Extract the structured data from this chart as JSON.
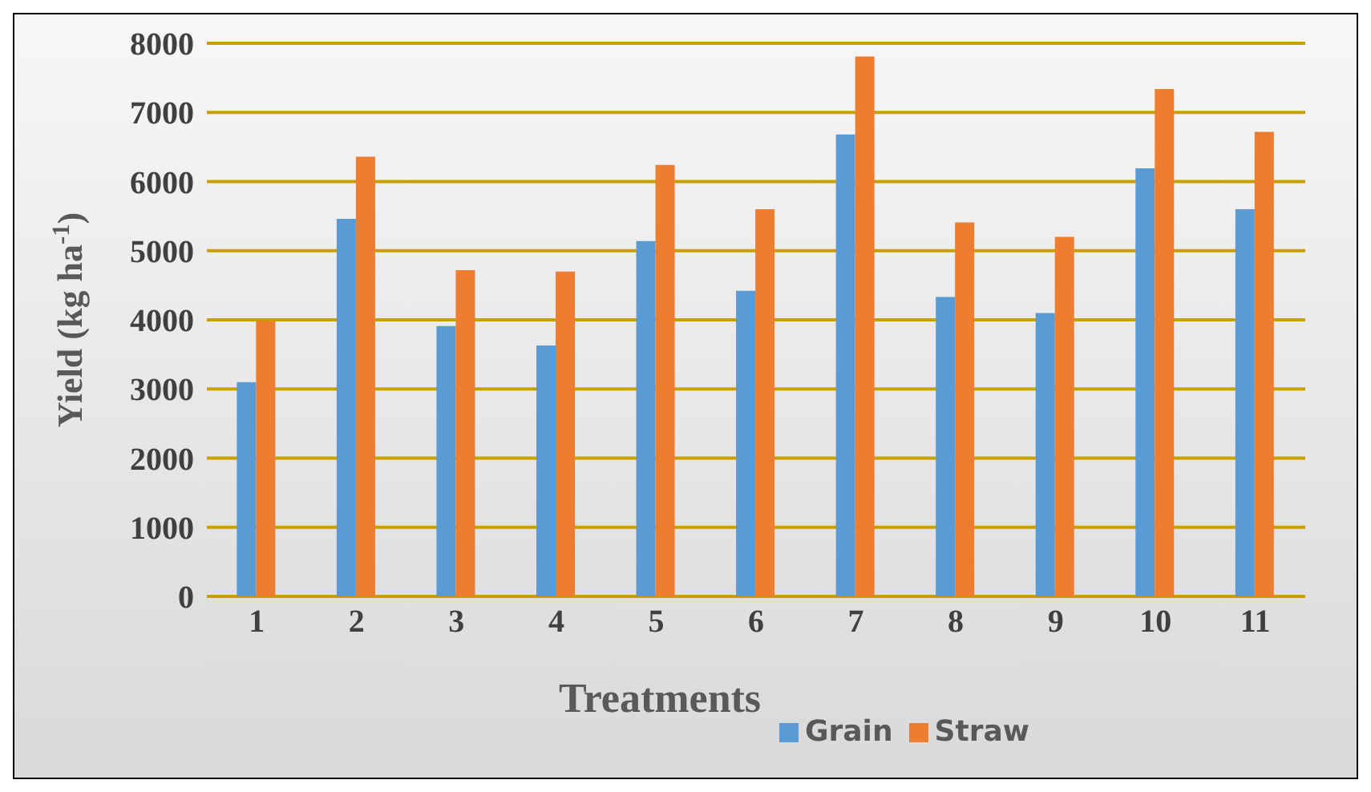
{
  "chart_data": {
    "type": "bar",
    "xlabel": "Treatments",
    "ylabel": "Yield  (kg ha$^{-1}$)",
    "categories": [
      "1",
      "2",
      "3",
      "4",
      "5",
      "6",
      "7",
      "8",
      "9",
      "10",
      "11"
    ],
    "series": [
      {
        "name": "Grain",
        "color": "#5b9bd5",
        "values": [
          3100,
          5460,
          3910,
          3630,
          5140,
          4420,
          6680,
          4330,
          4100,
          6190,
          5600
        ]
      },
      {
        "name": "Straw",
        "color": "#ed7d31",
        "values": [
          3980,
          6360,
          4720,
          4700,
          6240,
          5600,
          7810,
          5410,
          5200,
          7340,
          6720
        ]
      }
    ],
    "ylim": [
      0,
      8000
    ],
    "yticks": [
      0,
      1000,
      2000,
      3000,
      4000,
      5000,
      6000,
      7000,
      8000
    ],
    "grid": "y",
    "legend": "bottom"
  }
}
